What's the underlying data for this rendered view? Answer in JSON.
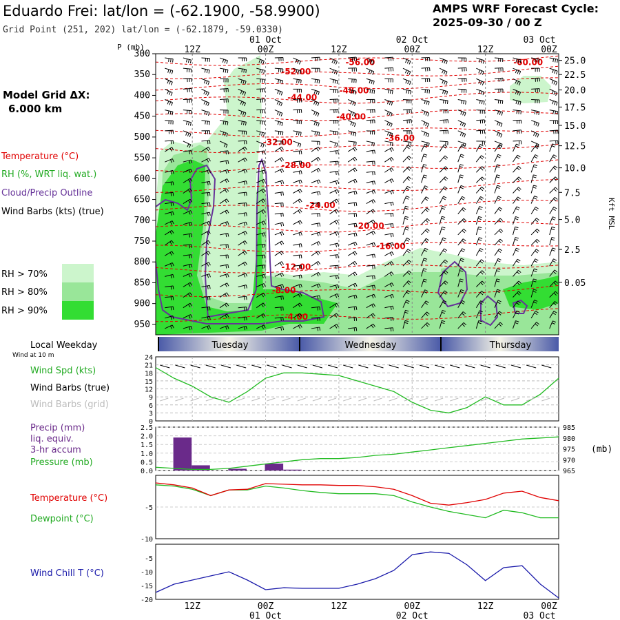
{
  "header": {
    "station_title": "Eduardo Frei:  lat/lon = (-62.1900, -58.9900)",
    "grid_point": "Grid Point (251, 202) lat/lon = (-62.1879, -59.0330)",
    "cycle_line1": "AMPS WRF Forecast Cycle:",
    "cycle_line2": "2025-09-30 / 00  Z"
  },
  "left_labels": {
    "model_grid_line1": "Model Grid ΔX:",
    "model_grid_line2": "6.000 km",
    "temperature": "Temperature (°C)",
    "rh": "RH (%, WRT liq. wat.)",
    "cloud": "Cloud/Precip Outline",
    "wind_barbs": "Wind Barbs (kts) (true)",
    "rh70": "RH > 70%",
    "rh80": "RH > 80%",
    "rh90": "RH > 90%",
    "local_weekday": "Local Weekday",
    "wind_at": "Wind at 10 m",
    "wind_spd": "Wind Spd (kts)",
    "wind_barbs_true": "Wind Barbs (true)",
    "wind_barbs_grid": "Wind Barbs (grid)",
    "precip1": "Precip (mm)",
    "precip2": "liq. equiv.",
    "precip3": "3-hr accum",
    "pressure": "Pressure (mb)",
    "temp2": "Temperature (°C)",
    "dewpoint": "Dewpoint (°C)",
    "windchill": "Wind Chill T (°C)"
  },
  "axes": {
    "p_label": "P (mb)",
    "kft_label": "Kft MSL",
    "pressure_mb_label": "(mb)",
    "top_hours": [
      "12Z",
      "00Z",
      "12Z",
      "00Z",
      "12Z",
      "00Z"
    ],
    "top_dates": [
      "01 Oct",
      "02 Oct",
      "03 Oct"
    ],
    "bottom_hours": [
      "12Z",
      "00Z",
      "12Z",
      "00Z",
      "12Z",
      "00Z"
    ],
    "bottom_dates": [
      "01 Oct",
      "02 Oct",
      "03 Oct"
    ],
    "days": [
      "Tuesday",
      "Wednesday",
      "Thursday"
    ]
  },
  "colors": {
    "temp_red": "#e00000",
    "rh70": "#ccf5cc",
    "rh80": "#99e699",
    "rh90": "#33dd33",
    "cloud_purple": "#663399",
    "wind_green": "#22bb22",
    "precip_purple": "#6a2a8a",
    "chill_blue": "#1a1aaa"
  },
  "chart_data": [
    {
      "type": "heatmap",
      "name": "vertical profile",
      "x_hours": [
        0,
        66
      ],
      "y_pressure_mb": [
        975,
        300
      ],
      "pressure_ticks": [
        300,
        350,
        400,
        450,
        500,
        550,
        600,
        650,
        700,
        750,
        800,
        850,
        900,
        950
      ],
      "height_ticks_kft": [
        "25.0",
        "22.5",
        "20.0",
        "17.5",
        "15.0",
        "12.5",
        "10.0",
        "7.5",
        "5.0",
        "2.5",
        "0.05"
      ],
      "height_tick_pressure": [
        316,
        350,
        387,
        428,
        472,
        521,
        574,
        633,
        698,
        770,
        849,
        975
      ],
      "temperature_labels": [
        {
          "text": "-56.00",
          "h": 33.5,
          "p": 327
        },
        {
          "text": "-60.00",
          "h": 61,
          "p": 327
        },
        {
          "text": "-52.00",
          "h": 23,
          "p": 350
        },
        {
          "text": "-48.00",
          "h": 32.5,
          "p": 395
        },
        {
          "text": "-44.00",
          "h": 24,
          "p": 412
        },
        {
          "text": "-40.00",
          "h": 32,
          "p": 458
        },
        {
          "text": "-36.00",
          "h": 40,
          "p": 509
        },
        {
          "text": "-32.00",
          "h": 20,
          "p": 519
        },
        {
          "text": "-28.00",
          "h": 23,
          "p": 575
        },
        {
          "text": "-24.00",
          "h": 27,
          "p": 671
        },
        {
          "text": "-20.00",
          "h": 35,
          "p": 720
        },
        {
          "text": "-16.00",
          "h": 38.5,
          "p": 769
        },
        {
          "text": "-12.00",
          "h": 23,
          "p": 819
        },
        {
          "text": "-8.00",
          "h": 21,
          "p": 875
        },
        {
          "text": "-4.00",
          "h": 23,
          "p": 939
        }
      ],
      "temperature_isotherm_pressures": [
        320,
        352,
        380,
        412,
        452,
        492,
        530,
        575,
        625,
        672,
        720,
        768,
        818,
        875,
        935
      ]
    },
    {
      "type": "line",
      "name": "10 m wind speed",
      "ylabel": "Wind Spd (kts)",
      "ylim": [
        0,
        24
      ],
      "yticks": [
        0,
        3,
        6,
        9,
        12,
        15,
        18,
        21,
        24
      ],
      "x_hours": [
        0,
        3,
        6,
        9,
        12,
        15,
        18,
        21,
        24,
        27,
        30,
        33,
        36,
        39,
        42,
        45,
        48,
        51,
        54,
        57,
        60,
        63,
        66
      ],
      "values": [
        20,
        16,
        13,
        9,
        7,
        11,
        16,
        18,
        18,
        17.5,
        17,
        15,
        13,
        11,
        7,
        4,
        3,
        5,
        9,
        6,
        6,
        10,
        16
      ]
    },
    {
      "type": "bar",
      "name": "precip 3-hr accum",
      "ylabel": "Precip (mm)",
      "ylim": [
        0,
        2.5
      ],
      "yticks": [
        0.0,
        0.5,
        1.0,
        1.5,
        2.0,
        2.5
      ],
      "x_hours": [
        3,
        6,
        9,
        12,
        15,
        18,
        21
      ],
      "values": [
        1.9,
        0.3,
        0.0,
        0.1,
        0.0,
        0.4,
        0.05
      ]
    },
    {
      "type": "line",
      "name": "surface pressure",
      "ylabel": "(mb)",
      "ylim": [
        965,
        985
      ],
      "yticks": [
        965,
        970,
        975,
        980,
        985
      ],
      "x_hours": [
        0,
        6,
        9,
        12,
        15,
        18,
        21,
        24,
        27,
        30,
        33,
        36,
        39,
        42,
        45,
        48,
        51,
        54,
        57,
        60,
        63,
        66
      ],
      "values": [
        966.5,
        965.5,
        965.5,
        966,
        967,
        968,
        969,
        970,
        970.5,
        970.5,
        971,
        972,
        972.5,
        973.5,
        974.5,
        975.5,
        976.5,
        977.5,
        978.5,
        979.5,
        980,
        980.5
      ]
    },
    {
      "type": "line",
      "name": "temperature and dewpoint",
      "ylim": [
        -10,
        0
      ],
      "yticks": [
        -10,
        -5
      ],
      "x_hours": [
        0,
        3,
        6,
        9,
        12,
        15,
        18,
        21,
        24,
        27,
        30,
        33,
        36,
        39,
        42,
        45,
        48,
        51,
        54,
        57,
        60,
        63,
        66
      ],
      "series": [
        {
          "name": "Temperature (°C)",
          "values": [
            -1.2,
            -1.5,
            -2.0,
            -3.2,
            -2.3,
            -2.2,
            -1.3,
            -1.4,
            -1.5,
            -1.5,
            -1.6,
            -1.6,
            -1.8,
            -2.2,
            -3.2,
            -4.4,
            -4.7,
            -4.3,
            -3.8,
            -2.8,
            -2.5,
            -3.5,
            -4.0
          ]
        },
        {
          "name": "Dewpoint (°C)",
          "values": [
            -1.5,
            -1.7,
            -2.2,
            -3.2,
            -2.3,
            -2.3,
            -1.7,
            -2.0,
            -2.4,
            -2.7,
            -2.9,
            -2.9,
            -2.9,
            -3.2,
            -4.2,
            -5.0,
            -5.7,
            -6.2,
            -6.7,
            -5.5,
            -5.9,
            -6.7,
            -6.7
          ]
        }
      ]
    },
    {
      "type": "line",
      "name": "wind chill",
      "ylabel": "Wind Chill T (°C)",
      "ylim": [
        -20,
        0
      ],
      "yticks": [
        -20,
        -15,
        -10,
        -5
      ],
      "x_hours": [
        0,
        3,
        6,
        9,
        12,
        15,
        18,
        21,
        24,
        27,
        30,
        33,
        36,
        39,
        42,
        45,
        48,
        51,
        54,
        57,
        60,
        63,
        66
      ],
      "values": [
        -17.5,
        -14.5,
        -13,
        -11.5,
        -10,
        -13,
        -16.5,
        -15.8,
        -16,
        -16,
        -16,
        -14.5,
        -12.5,
        -9.5,
        -3.8,
        -2.8,
        -3.3,
        -7.5,
        -13.2,
        -8.5,
        -7.8,
        -14.5,
        -19.5
      ]
    }
  ]
}
